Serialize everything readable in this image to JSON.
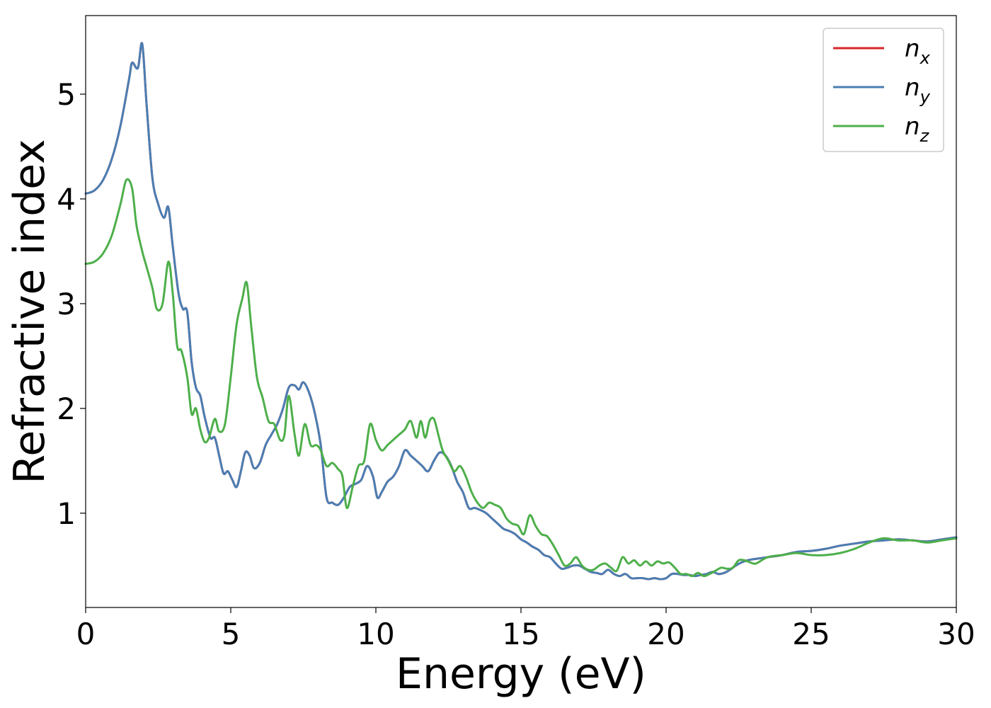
{
  "chart_data": {
    "type": "line",
    "xlabel": "Energy (eV)",
    "ylabel": "Refractive index",
    "xlim": [
      0,
      30
    ],
    "ylim": [
      0.1,
      5.75
    ],
    "xticks": [
      0,
      5,
      10,
      15,
      20,
      25,
      30
    ],
    "xtick_labels": [
      "0",
      "5",
      "10",
      "15",
      "20",
      "25",
      "30"
    ],
    "yticks": [
      1,
      2,
      3,
      4,
      5
    ],
    "ytick_labels": [
      "1",
      "2",
      "3",
      "4",
      "5"
    ],
    "grid": false,
    "legend_position": "top-right",
    "series": [
      {
        "name": "n_x",
        "legend_base": "n",
        "legend_sub": "x",
        "color": "#d62728",
        "x": [
          0,
          0.3,
          0.6,
          0.9,
          1.2,
          1.5,
          1.6,
          1.8,
          1.95,
          2.1,
          2.3,
          2.5,
          2.7,
          2.85,
          3.0,
          3.2,
          3.35,
          3.5,
          3.65,
          3.8,
          3.95,
          4.1,
          4.3,
          4.45,
          4.6,
          4.75,
          4.9,
          5.05,
          5.2,
          5.35,
          5.5,
          5.65,
          5.8,
          6.0,
          6.2,
          6.4,
          6.6,
          6.8,
          7.0,
          7.2,
          7.35,
          7.5,
          7.7,
          7.9,
          8.1,
          8.3,
          8.5,
          8.7,
          8.9,
          9.1,
          9.3,
          9.5,
          9.7,
          9.9,
          10.05,
          10.2,
          10.4,
          10.6,
          10.8,
          11.0,
          11.2,
          11.4,
          11.6,
          11.8,
          12.0,
          12.2,
          12.4,
          12.6,
          12.8,
          13.0,
          13.2,
          13.4,
          13.6,
          13.8,
          14.0,
          14.2,
          14.4,
          14.6,
          14.8,
          15.0,
          15.2,
          15.4,
          15.6,
          15.8,
          16.0,
          16.2,
          16.4,
          16.6,
          16.8,
          17.0,
          17.2,
          17.4,
          17.6,
          17.8,
          18.0,
          18.2,
          18.4,
          18.6,
          18.8,
          19.0,
          19.2,
          19.4,
          19.6,
          19.8,
          20.0,
          20.2,
          20.4,
          20.6,
          20.8,
          21.0,
          21.2,
          21.4,
          21.6,
          21.8,
          22.0,
          22.2,
          22.4,
          22.6,
          22.8,
          23.0,
          23.5,
          24.0,
          24.5,
          25.0,
          25.5,
          26.0,
          26.5,
          27.0,
          27.5,
          28.0,
          28.5,
          29.0,
          29.5,
          30.0
        ],
        "y": [
          4.05,
          4.08,
          4.18,
          4.38,
          4.7,
          5.15,
          5.3,
          5.25,
          5.48,
          4.9,
          4.2,
          3.95,
          3.82,
          3.92,
          3.55,
          3.1,
          2.95,
          2.92,
          2.45,
          2.2,
          2.12,
          1.92,
          1.72,
          1.72,
          1.55,
          1.38,
          1.4,
          1.32,
          1.25,
          1.4,
          1.58,
          1.55,
          1.43,
          1.48,
          1.65,
          1.75,
          1.85,
          2.0,
          2.2,
          2.22,
          2.18,
          2.25,
          2.15,
          1.95,
          1.65,
          1.15,
          1.1,
          1.08,
          1.15,
          1.25,
          1.28,
          1.32,
          1.45,
          1.35,
          1.15,
          1.2,
          1.3,
          1.35,
          1.45,
          1.6,
          1.55,
          1.5,
          1.45,
          1.4,
          1.5,
          1.58,
          1.55,
          1.45,
          1.3,
          1.2,
          1.05,
          1.05,
          1.03,
          1.0,
          0.95,
          0.9,
          0.85,
          0.83,
          0.8,
          0.75,
          0.72,
          0.68,
          0.65,
          0.6,
          0.58,
          0.52,
          0.47,
          0.48,
          0.5,
          0.5,
          0.47,
          0.44,
          0.43,
          0.42,
          0.46,
          0.42,
          0.4,
          0.42,
          0.38,
          0.38,
          0.38,
          0.37,
          0.38,
          0.37,
          0.38,
          0.42,
          0.42,
          0.41,
          0.41,
          0.4,
          0.41,
          0.42,
          0.44,
          0.42,
          0.43,
          0.46,
          0.5,
          0.53,
          0.55,
          0.56,
          0.58,
          0.6,
          0.63,
          0.64,
          0.66,
          0.69,
          0.71,
          0.73,
          0.74,
          0.75,
          0.74,
          0.73,
          0.75,
          0.77
        ]
      },
      {
        "name": "n_y",
        "legend_base": "n",
        "legend_sub": "y",
        "color": "#4a7eb3",
        "x": [
          0,
          0.3,
          0.6,
          0.9,
          1.2,
          1.5,
          1.6,
          1.8,
          1.95,
          2.1,
          2.3,
          2.5,
          2.7,
          2.85,
          3.0,
          3.2,
          3.35,
          3.5,
          3.65,
          3.8,
          3.95,
          4.1,
          4.3,
          4.45,
          4.6,
          4.75,
          4.9,
          5.05,
          5.2,
          5.35,
          5.5,
          5.65,
          5.8,
          6.0,
          6.2,
          6.4,
          6.6,
          6.8,
          7.0,
          7.2,
          7.35,
          7.5,
          7.7,
          7.9,
          8.1,
          8.3,
          8.5,
          8.7,
          8.9,
          9.1,
          9.3,
          9.5,
          9.7,
          9.9,
          10.05,
          10.2,
          10.4,
          10.6,
          10.8,
          11.0,
          11.2,
          11.4,
          11.6,
          11.8,
          12.0,
          12.2,
          12.4,
          12.6,
          12.8,
          13.0,
          13.2,
          13.4,
          13.6,
          13.8,
          14.0,
          14.2,
          14.4,
          14.6,
          14.8,
          15.0,
          15.2,
          15.4,
          15.6,
          15.8,
          16.0,
          16.2,
          16.4,
          16.6,
          16.8,
          17.0,
          17.2,
          17.4,
          17.6,
          17.8,
          18.0,
          18.2,
          18.4,
          18.6,
          18.8,
          19.0,
          19.2,
          19.4,
          19.6,
          19.8,
          20.0,
          20.2,
          20.4,
          20.6,
          20.8,
          21.0,
          21.2,
          21.4,
          21.6,
          21.8,
          22.0,
          22.2,
          22.4,
          22.6,
          22.8,
          23.0,
          23.5,
          24.0,
          24.5,
          25.0,
          25.5,
          26.0,
          26.5,
          27.0,
          27.5,
          28.0,
          28.5,
          29.0,
          29.5,
          30.0
        ],
        "y": [
          4.05,
          4.08,
          4.18,
          4.38,
          4.7,
          5.15,
          5.3,
          5.25,
          5.48,
          4.9,
          4.2,
          3.95,
          3.82,
          3.92,
          3.55,
          3.1,
          2.95,
          2.92,
          2.45,
          2.2,
          2.12,
          1.92,
          1.72,
          1.72,
          1.55,
          1.38,
          1.4,
          1.32,
          1.25,
          1.4,
          1.58,
          1.55,
          1.43,
          1.48,
          1.65,
          1.75,
          1.85,
          2.0,
          2.2,
          2.22,
          2.18,
          2.25,
          2.15,
          1.95,
          1.65,
          1.15,
          1.1,
          1.08,
          1.15,
          1.25,
          1.28,
          1.32,
          1.45,
          1.35,
          1.15,
          1.2,
          1.3,
          1.35,
          1.45,
          1.6,
          1.55,
          1.5,
          1.45,
          1.4,
          1.5,
          1.58,
          1.55,
          1.45,
          1.3,
          1.2,
          1.05,
          1.05,
          1.03,
          1.0,
          0.95,
          0.9,
          0.85,
          0.83,
          0.8,
          0.75,
          0.72,
          0.68,
          0.65,
          0.6,
          0.58,
          0.52,
          0.47,
          0.48,
          0.5,
          0.5,
          0.47,
          0.44,
          0.43,
          0.42,
          0.46,
          0.42,
          0.4,
          0.42,
          0.38,
          0.38,
          0.38,
          0.37,
          0.38,
          0.37,
          0.38,
          0.42,
          0.42,
          0.41,
          0.41,
          0.4,
          0.41,
          0.42,
          0.44,
          0.42,
          0.43,
          0.46,
          0.5,
          0.53,
          0.55,
          0.56,
          0.58,
          0.6,
          0.63,
          0.64,
          0.66,
          0.69,
          0.71,
          0.73,
          0.74,
          0.75,
          0.74,
          0.73,
          0.75,
          0.77
        ]
      },
      {
        "name": "n_z",
        "legend_base": "n",
        "legend_sub": "z",
        "color": "#4daf4a",
        "x": [
          0,
          0.3,
          0.6,
          0.9,
          1.2,
          1.4,
          1.6,
          1.75,
          1.95,
          2.1,
          2.3,
          2.45,
          2.65,
          2.85,
          3.0,
          3.15,
          3.3,
          3.5,
          3.65,
          3.8,
          3.95,
          4.1,
          4.25,
          4.45,
          4.6,
          4.8,
          5.0,
          5.2,
          5.4,
          5.55,
          5.7,
          5.9,
          6.1,
          6.3,
          6.5,
          6.7,
          6.85,
          7.0,
          7.2,
          7.35,
          7.55,
          7.75,
          7.95,
          8.1,
          8.3,
          8.5,
          8.7,
          8.85,
          9.0,
          9.2,
          9.4,
          9.6,
          9.8,
          10.0,
          10.2,
          10.4,
          10.6,
          10.8,
          11.0,
          11.2,
          11.4,
          11.55,
          11.7,
          11.85,
          12.0,
          12.15,
          12.3,
          12.5,
          12.7,
          12.9,
          13.1,
          13.3,
          13.5,
          13.7,
          13.9,
          14.1,
          14.3,
          14.5,
          14.7,
          14.9,
          15.1,
          15.3,
          15.5,
          15.7,
          15.9,
          16.1,
          16.3,
          16.5,
          16.7,
          16.9,
          17.1,
          17.3,
          17.5,
          17.7,
          17.9,
          18.1,
          18.3,
          18.5,
          18.7,
          18.9,
          19.1,
          19.3,
          19.5,
          19.7,
          19.9,
          20.1,
          20.3,
          20.5,
          20.7,
          20.9,
          21.1,
          21.3,
          21.5,
          21.7,
          21.9,
          22.1,
          22.3,
          22.5,
          22.7,
          22.9,
          23.1,
          23.5,
          24.0,
          24.5,
          25.0,
          25.5,
          26.0,
          26.5,
          27.0,
          27.5,
          28.0,
          28.5,
          29.0,
          29.5,
          30.0
        ],
        "y": [
          3.38,
          3.4,
          3.48,
          3.65,
          3.95,
          4.18,
          4.1,
          3.75,
          3.5,
          3.35,
          3.15,
          2.95,
          3.0,
          3.4,
          3.1,
          2.6,
          2.55,
          2.3,
          1.95,
          2.0,
          1.8,
          1.68,
          1.72,
          1.9,
          1.78,
          1.85,
          2.3,
          2.8,
          3.05,
          3.2,
          2.8,
          2.3,
          2.1,
          1.88,
          1.85,
          1.7,
          1.75,
          2.12,
          1.75,
          1.55,
          1.85,
          1.65,
          1.65,
          1.6,
          1.45,
          1.48,
          1.42,
          1.35,
          1.05,
          1.25,
          1.45,
          1.5,
          1.85,
          1.7,
          1.6,
          1.65,
          1.7,
          1.75,
          1.8,
          1.88,
          1.72,
          1.88,
          1.72,
          1.88,
          1.9,
          1.75,
          1.6,
          1.5,
          1.4,
          1.45,
          1.35,
          1.2,
          1.1,
          1.05,
          1.1,
          1.08,
          1.05,
          0.95,
          0.9,
          0.88,
          0.8,
          0.98,
          0.88,
          0.8,
          0.78,
          0.7,
          0.6,
          0.5,
          0.52,
          0.58,
          0.5,
          0.46,
          0.46,
          0.5,
          0.52,
          0.48,
          0.45,
          0.58,
          0.52,
          0.55,
          0.5,
          0.54,
          0.5,
          0.54,
          0.52,
          0.53,
          0.48,
          0.42,
          0.42,
          0.4,
          0.43,
          0.4,
          0.42,
          0.45,
          0.48,
          0.47,
          0.48,
          0.55,
          0.55,
          0.53,
          0.52,
          0.58,
          0.6,
          0.62,
          0.6,
          0.6,
          0.62,
          0.66,
          0.72,
          0.76,
          0.74,
          0.74,
          0.72,
          0.74,
          0.76
        ]
      }
    ]
  }
}
